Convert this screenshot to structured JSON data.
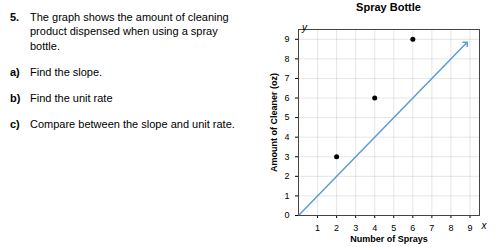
{
  "chart_data": {
    "type": "line",
    "title": "Spray Bottle",
    "xlabel": "Number of Sprays",
    "ylabel": "Amount of Cleaner (oz)",
    "xlim": [
      0,
      9.5
    ],
    "ylim": [
      0,
      9.5
    ],
    "xticks": [
      1,
      2,
      3,
      4,
      5,
      6,
      7,
      8,
      9
    ],
    "yticks": [
      0,
      1,
      2,
      3,
      4,
      5,
      6,
      7,
      8,
      9
    ],
    "grid": true,
    "series": [
      {
        "type": "line",
        "color": "#5b9bd5",
        "marker": "arrow",
        "x": [
          0.0,
          8.8
        ],
        "values": [
          0.0,
          8.8
        ]
      },
      {
        "type": "scatter",
        "color": "#000000",
        "marker": "circle",
        "x": [
          2,
          4,
          6
        ],
        "values": [
          3,
          6,
          9
        ]
      }
    ],
    "annotations": [
      {
        "text": "5."
      },
      {
        "text": "The graph shows the amount of cleaning product dispensed when using a spray\n     bottle."
      },
      {
        "text": "a)"
      },
      {
        "text": "Find the slope."
      },
      {
        "text": "b)"
      },
      {
        "text": "Find the unit rate"
      },
      {
        "text": "c)"
      },
      {
        "text": "Compare between the slope and unit rate."
      },
      {
        "text": "y",
        "x": 0.18,
        "y": 9.6
      },
      {
        "text": "x",
        "x": 9.6,
        "y": -0.55
      }
    ]
  }
}
